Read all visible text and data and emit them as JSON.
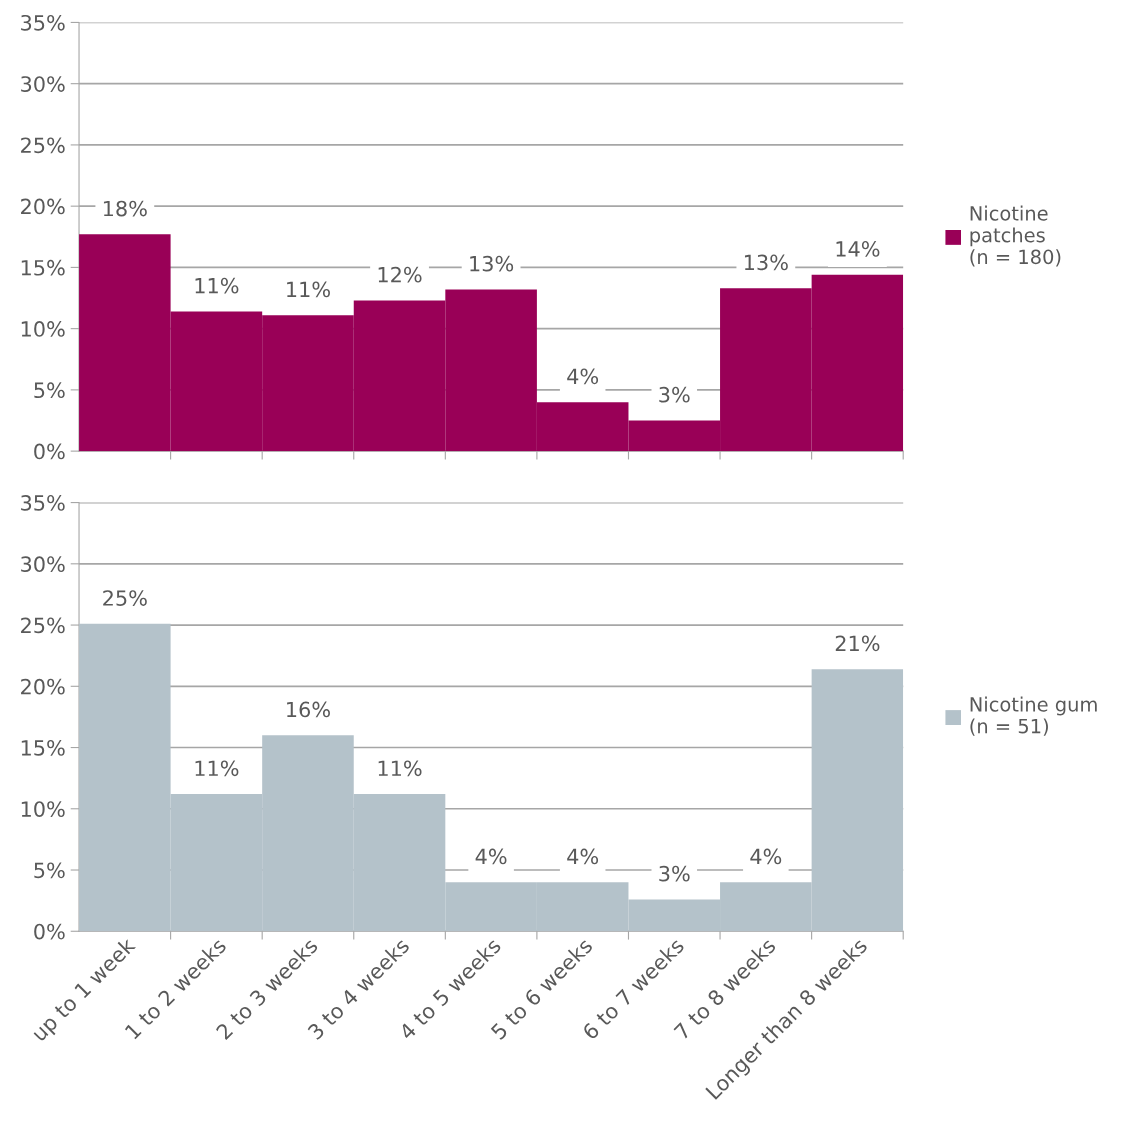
{
  "chart_data": [
    {
      "type": "bar",
      "categories": [
        null,
        null,
        null,
        null,
        null,
        null,
        null,
        null,
        null
      ],
      "series": [
        {
          "name": "Nicotine\npatches\n(n = 180)",
          "color": "#990057",
          "values": [
            17.7,
            11.4,
            11.1,
            12.3,
            13.2,
            4.0,
            2.5,
            13.3,
            14.4
          ],
          "value_labels": [
            "18%",
            "11%",
            "11%",
            "12%",
            "13%",
            "4%",
            "3%",
            "13%",
            "14%"
          ]
        }
      ],
      "ylim": [
        0,
        35
      ],
      "yticks": [
        {
          "value": 0,
          "label": "0%"
        },
        {
          "value": 5,
          "label": "5%"
        },
        {
          "value": 10,
          "label": "10%"
        },
        {
          "value": 15,
          "label": "15%"
        },
        {
          "value": 20,
          "label": "20%"
        },
        {
          "value": 25,
          "label": "25%"
        },
        {
          "value": 30,
          "label": "30%"
        },
        {
          "value": 35,
          "label": "35%"
        }
      ],
      "grid": "y",
      "legend": "right",
      "tick_labels": "y"
    },
    {
      "type": "bar",
      "categories": [
        "up to 1 week",
        "1 to 2 weeks",
        "2 to 3 weeks",
        "3 to 4 weeks",
        "4 to 5 weeks",
        "5 to 6 weeks",
        "6 to 7 weeks",
        "7 to 8 weeks",
        "Longer than 8 weeks"
      ],
      "series": [
        {
          "name": "Nicotine gum\n(n = 51)",
          "color": "#b4c2ca",
          "values": [
            25.1,
            11.2,
            16.0,
            11.2,
            4.0,
            4.0,
            2.6,
            4.0,
            21.4
          ],
          "value_labels": [
            "25%",
            "11%",
            "16%",
            "11%",
            "4%",
            "4%",
            "3%",
            "4%",
            "21%"
          ]
        }
      ],
      "ylim": [
        0,
        35
      ],
      "yticks": [
        {
          "value": 0,
          "label": "0%"
        },
        {
          "value": 5,
          "label": "5%"
        },
        {
          "value": 10,
          "label": "10%"
        },
        {
          "value": 15,
          "label": "15%"
        },
        {
          "value": 20,
          "label": "20%"
        },
        {
          "value": 25,
          "label": "25%"
        },
        {
          "value": 30,
          "label": "30%"
        },
        {
          "value": 35,
          "label": "35%"
        }
      ],
      "grid": "y",
      "legend": "right"
    }
  ]
}
